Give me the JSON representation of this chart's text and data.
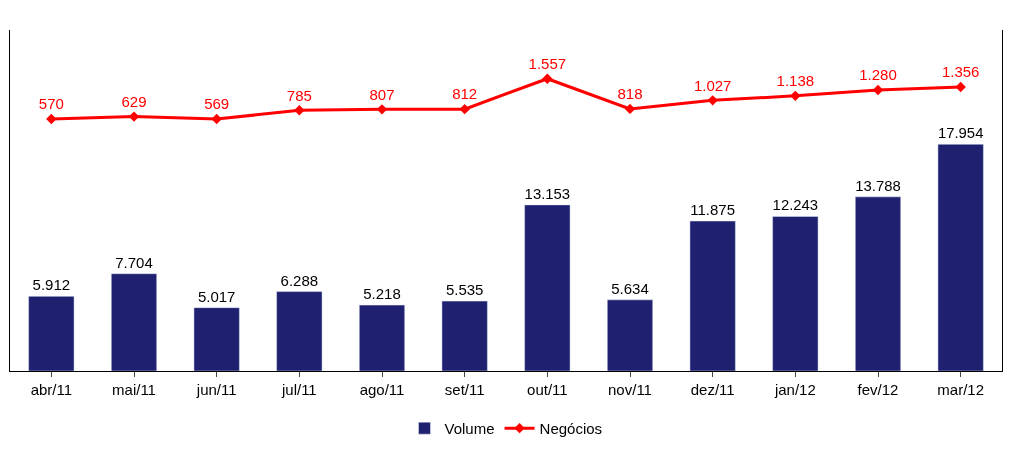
{
  "chart_data": {
    "type": "bar",
    "categories": [
      "abr/11",
      "mai/11",
      "jun/11",
      "jul/11",
      "ago/11",
      "set/11",
      "out/11",
      "nov/11",
      "dez/11",
      "jan/12",
      "fev/12",
      "mar/12"
    ],
    "series": [
      {
        "name": "Volume",
        "color": "#202070",
        "values": [
          5912,
          7704,
          5017,
          6288,
          5218,
          5535,
          13153,
          5634,
          11875,
          12243,
          13788,
          17954
        ],
        "value_labels": [
          "5.912",
          "7.704",
          "5.017",
          "6.288",
          "5.218",
          "5.535",
          "13.153",
          "5.634",
          "11.875",
          "12.243",
          "13.788",
          "17.954"
        ]
      },
      {
        "name": "Negócios",
        "type": "line",
        "axis": "y2",
        "color": "#ff0000",
        "marker": "diamond",
        "values": [
          570,
          629,
          569,
          785,
          807,
          812,
          1557,
          818,
          1027,
          1138,
          1280,
          1356
        ],
        "value_labels": [
          "570",
          "629",
          "569",
          "785",
          "807",
          "812",
          "1.557",
          "818",
          "1.027",
          "1.138",
          "1.280",
          "1.356"
        ]
      }
    ],
    "ylim": [
      0,
      27000
    ],
    "y2lim": [
      -5600,
      2750
    ],
    "tick_labels": "x",
    "legend": "bottom"
  }
}
